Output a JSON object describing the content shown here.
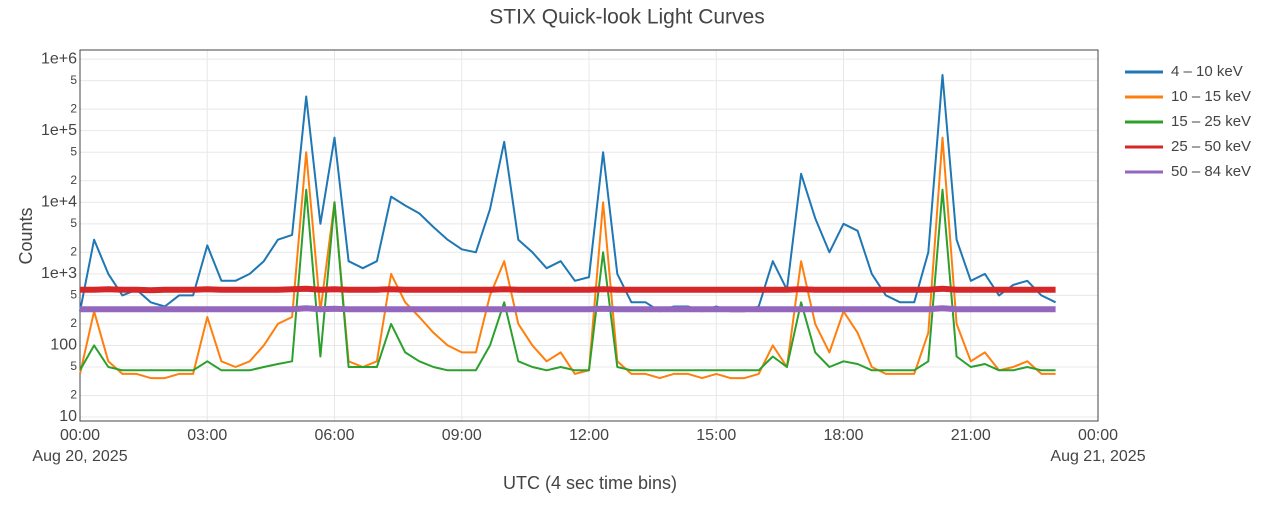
{
  "chart_data": {
    "type": "line",
    "title": "STIX Quick-look Light Curves",
    "xlabel": "UTC (4 sec time bins)",
    "ylabel": "Counts",
    "log_y": true,
    "grid": true,
    "legend": "right",
    "xlim": [
      "2025-08-20T00:00",
      "2025-08-21T00:00"
    ],
    "xticks": [
      {
        "value": "2025-08-20T00:00",
        "label": "00:00",
        "sublabel": "Aug 20, 2025"
      },
      {
        "value": "2025-08-20T03:00",
        "label": "03:00"
      },
      {
        "value": "2025-08-20T06:00",
        "label": "06:00"
      },
      {
        "value": "2025-08-20T09:00",
        "label": "09:00"
      },
      {
        "value": "2025-08-20T12:00",
        "label": "12:00"
      },
      {
        "value": "2025-08-20T15:00",
        "label": "15:00"
      },
      {
        "value": "2025-08-20T18:00",
        "label": "18:00"
      },
      {
        "value": "2025-08-20T21:00",
        "label": "21:00"
      },
      {
        "value": "2025-08-21T00:00",
        "label": "00:00",
        "sublabel": "Aug 21, 2025"
      }
    ],
    "ylim": [
      8.8,
      1340000
    ],
    "yticks": [
      10,
      {
        "value": 20,
        "label": "2"
      },
      {
        "value": 50,
        "label": "5"
      },
      100,
      {
        "value": 200,
        "label": "2"
      },
      {
        "value": 500,
        "label": "5"
      },
      {
        "value": 1000,
        "label": "1e+3"
      },
      {
        "value": 2000,
        "label": "2"
      },
      {
        "value": 5000,
        "label": "5"
      },
      {
        "value": 10000,
        "label": "1e+4"
      },
      {
        "value": 20000,
        "label": "2"
      },
      {
        "value": 50000,
        "label": "5"
      },
      {
        "value": 100000,
        "label": "1e+5"
      },
      {
        "value": 200000,
        "label": "2"
      },
      {
        "value": 500000,
        "label": "5"
      },
      {
        "value": 1000000,
        "label": "1e+6"
      }
    ],
    "x": [
      "2025-08-20T00:00",
      "2025-08-20T00:20",
      "2025-08-20T00:40",
      "2025-08-20T01:00",
      "2025-08-20T01:20",
      "2025-08-20T01:40",
      "2025-08-20T02:00",
      "2025-08-20T02:20",
      "2025-08-20T02:40",
      "2025-08-20T03:00",
      "2025-08-20T03:20",
      "2025-08-20T03:40",
      "2025-08-20T04:00",
      "2025-08-20T04:20",
      "2025-08-20T04:40",
      "2025-08-20T05:00",
      "2025-08-20T05:20",
      "2025-08-20T05:40",
      "2025-08-20T06:00",
      "2025-08-20T06:20",
      "2025-08-20T06:40",
      "2025-08-20T07:00",
      "2025-08-20T07:20",
      "2025-08-20T07:40",
      "2025-08-20T08:00",
      "2025-08-20T08:20",
      "2025-08-20T08:40",
      "2025-08-20T09:00",
      "2025-08-20T09:20",
      "2025-08-20T09:40",
      "2025-08-20T10:00",
      "2025-08-20T10:20",
      "2025-08-20T10:40",
      "2025-08-20T11:00",
      "2025-08-20T11:20",
      "2025-08-20T11:40",
      "2025-08-20T12:00",
      "2025-08-20T12:20",
      "2025-08-20T12:40",
      "2025-08-20T13:00",
      "2025-08-20T13:20",
      "2025-08-20T13:40",
      "2025-08-20T14:00",
      "2025-08-20T14:20",
      "2025-08-20T14:40",
      "2025-08-20T15:00",
      "2025-08-20T15:20",
      "2025-08-20T15:40",
      "2025-08-20T16:00",
      "2025-08-20T16:20",
      "2025-08-20T16:40",
      "2025-08-20T17:00",
      "2025-08-20T17:20",
      "2025-08-20T17:40",
      "2025-08-20T18:00",
      "2025-08-20T18:20",
      "2025-08-20T18:40",
      "2025-08-20T19:00",
      "2025-08-20T19:20",
      "2025-08-20T19:40",
      "2025-08-20T20:00",
      "2025-08-20T20:20",
      "2025-08-20T20:40",
      "2025-08-20T21:00",
      "2025-08-20T21:20",
      "2025-08-20T21:40",
      "2025-08-20T22:00",
      "2025-08-20T22:20",
      "2025-08-20T22:40",
      "2025-08-20T23:00"
    ],
    "series": [
      {
        "name": "4 – 10 keV",
        "color": "#1f77b4",
        "width": 2,
        "values": [
          300,
          3000,
          1000,
          500,
          600,
          400,
          350,
          500,
          500,
          2500,
          800,
          800,
          1000,
          1500,
          3000,
          3500,
          300000,
          5000,
          80000,
          1500,
          1200,
          1500,
          12000,
          9000,
          7000,
          4500,
          3000,
          2200,
          2000,
          8000,
          70000,
          3000,
          2000,
          1200,
          1500,
          800,
          900,
          50000,
          1000,
          400,
          400,
          300,
          350,
          350,
          300,
          350,
          300,
          300,
          350,
          1500,
          600,
          25000,
          6000,
          2000,
          5000,
          4000,
          1000,
          500,
          400,
          400,
          2000,
          600000,
          3000,
          800,
          1000,
          500,
          700,
          800,
          500,
          400
        ]
      },
      {
        "name": "10 – 15 keV",
        "color": "#ff7f0e",
        "width": 2,
        "values": [
          40,
          300,
          60,
          40,
          40,
          35,
          35,
          40,
          40,
          250,
          60,
          50,
          60,
          100,
          200,
          250,
          50000,
          300,
          10000,
          60,
          50,
          60,
          1000,
          400,
          250,
          150,
          100,
          80,
          80,
          500,
          1500,
          200,
          100,
          60,
          80,
          40,
          45,
          10000,
          60,
          40,
          40,
          35,
          40,
          40,
          35,
          40,
          35,
          35,
          40,
          100,
          50,
          1500,
          200,
          80,
          300,
          150,
          50,
          40,
          40,
          40,
          150,
          80000,
          200,
          60,
          80,
          45,
          50,
          60,
          40,
          40
        ]
      },
      {
        "name": "15 – 25 keV",
        "color": "#2ca02c",
        "width": 2,
        "values": [
          45,
          100,
          50,
          45,
          45,
          45,
          45,
          45,
          45,
          60,
          45,
          45,
          45,
          50,
          55,
          60,
          15000,
          70,
          10000,
          50,
          50,
          50,
          200,
          80,
          60,
          50,
          45,
          45,
          45,
          100,
          400,
          60,
          50,
          45,
          50,
          45,
          45,
          2000,
          50,
          45,
          45,
          45,
          45,
          45,
          45,
          45,
          45,
          45,
          45,
          70,
          50,
          400,
          80,
          50,
          60,
          55,
          45,
          45,
          45,
          45,
          60,
          15000,
          70,
          50,
          55,
          45,
          45,
          50,
          45,
          45
        ]
      },
      {
        "name": "25 – 50 keV",
        "color": "#d62728",
        "width": 6,
        "values": [
          600,
          600,
          610,
          600,
          600,
          590,
          600,
          600,
          600,
          610,
          600,
          600,
          600,
          600,
          600,
          610,
          620,
          600,
          610,
          600,
          600,
          600,
          610,
          600,
          600,
          600,
          600,
          600,
          600,
          600,
          610,
          600,
          600,
          600,
          600,
          600,
          600,
          610,
          600,
          600,
          600,
          600,
          600,
          600,
          600,
          600,
          600,
          600,
          600,
          600,
          600,
          610,
          600,
          600,
          600,
          600,
          600,
          600,
          600,
          600,
          600,
          620,
          600,
          600,
          600,
          600,
          600,
          600,
          600,
          600
        ]
      },
      {
        "name": "50 – 84 keV",
        "color": "#9467bd",
        "width": 6,
        "values": [
          320,
          320,
          320,
          320,
          320,
          320,
          320,
          320,
          320,
          320,
          320,
          320,
          320,
          320,
          320,
          320,
          330,
          320,
          325,
          320,
          320,
          320,
          320,
          320,
          320,
          320,
          320,
          320,
          320,
          320,
          320,
          320,
          320,
          320,
          320,
          320,
          320,
          325,
          320,
          320,
          320,
          320,
          320,
          320,
          320,
          320,
          320,
          320,
          320,
          320,
          320,
          320,
          320,
          320,
          320,
          320,
          320,
          320,
          320,
          320,
          320,
          330,
          320,
          320,
          320,
          320,
          320,
          320,
          320,
          320
        ]
      }
    ]
  }
}
